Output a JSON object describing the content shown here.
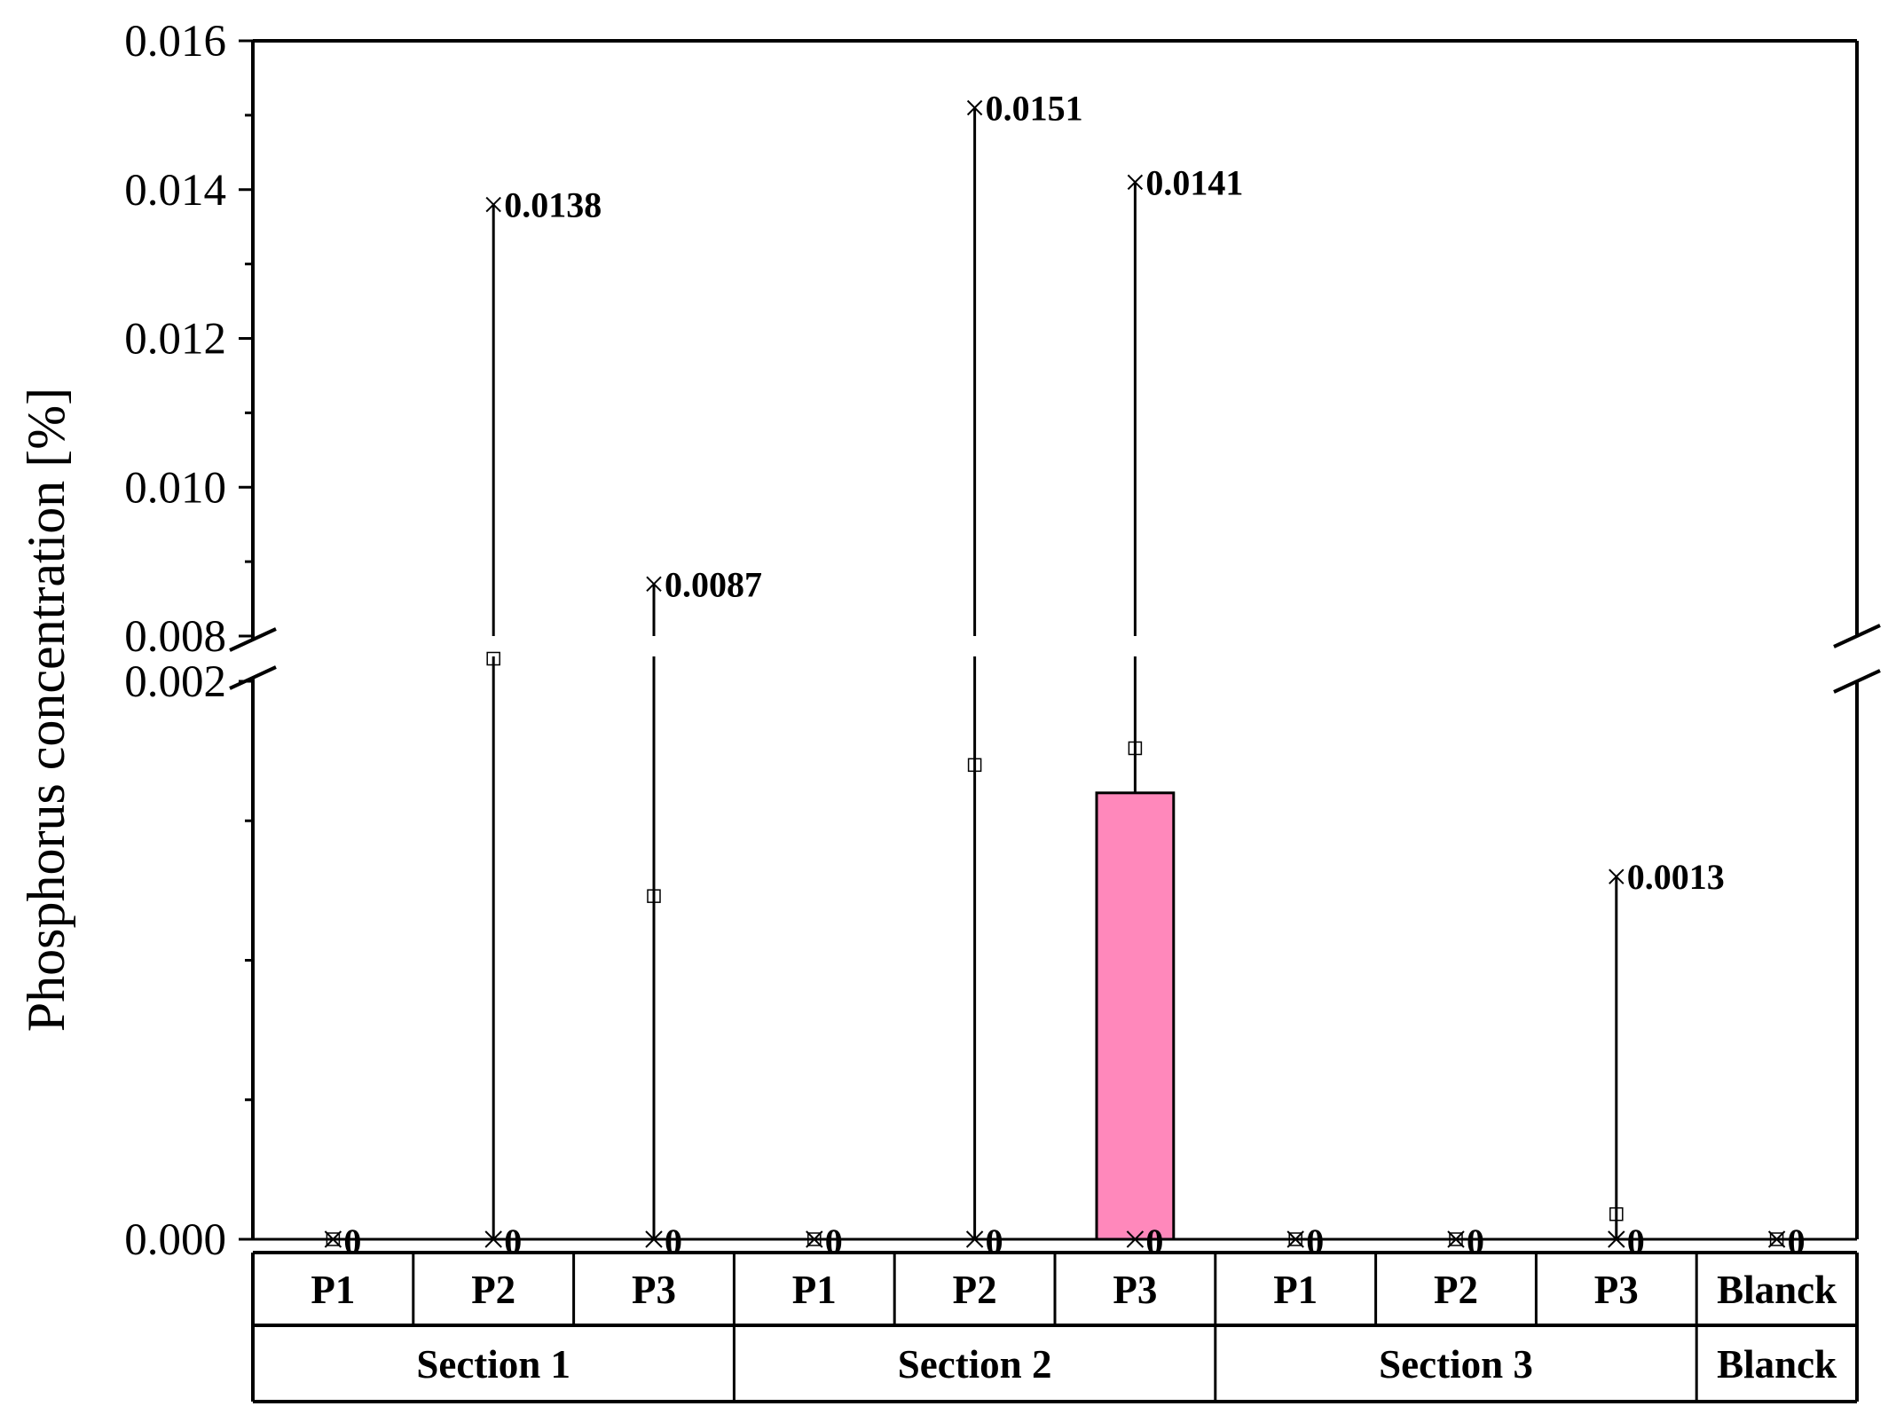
{
  "chart_data": {
    "type": "box",
    "ylabel": "Phosphorus concentration [%]",
    "y_axis": {
      "break": [
        0.002,
        0.008
      ],
      "lower_range": [
        0,
        0.002
      ],
      "upper_range": [
        0.008,
        0.016
      ],
      "tick_labels": [
        "0.000",
        "0.002",
        "0.008",
        "0.010",
        "0.012",
        "0.014",
        "0.016"
      ],
      "tick_values": [
        0,
        0.002,
        0.008,
        0.01,
        0.012,
        0.014,
        0.016
      ],
      "minor_tick_values": [
        0.0005,
        0.001,
        0.0015,
        0.009,
        0.011,
        0.013,
        0.015
      ]
    },
    "group_levels": {
      "points": [
        "P1",
        "P2",
        "P3",
        "P1",
        "P2",
        "P3",
        "P1",
        "P2",
        "P3",
        "Blanck"
      ],
      "sections": [
        {
          "label": "Section 1",
          "span": 3
        },
        {
          "label": "Section 2",
          "span": 3
        },
        {
          "label": "Section 3",
          "span": 3
        },
        {
          "label": "Blanck",
          "span": 1
        }
      ]
    },
    "boxes": [
      {
        "min": 0,
        "q1": 0,
        "median": 0,
        "q3": 0,
        "max": 0,
        "mean": 0,
        "min_label": "0",
        "max_label": "",
        "color": "#ffffff"
      },
      {
        "min": 0,
        "q1": 0,
        "median": 0,
        "q3": 0,
        "max": 0.0138,
        "mean": 0.0023,
        "min_label": "0",
        "max_label": "0.0138",
        "color": "#ffffff"
      },
      {
        "min": 0,
        "q1": 0,
        "median": 0,
        "q3": 0,
        "max": 0.0087,
        "mean": 0.00123,
        "min_label": "0",
        "max_label": "0.0087",
        "color": "#ffffff"
      },
      {
        "min": 0,
        "q1": 0,
        "median": 0,
        "q3": 0,
        "max": 0,
        "mean": 0,
        "min_label": "0",
        "max_label": "",
        "color": "#ffffff"
      },
      {
        "min": 0,
        "q1": 0,
        "median": 0,
        "q3": 0,
        "max": 0.0151,
        "mean": 0.0017,
        "min_label": "0",
        "max_label": "0.0151",
        "color": "#ffffff"
      },
      {
        "min": 0,
        "q1": 0,
        "median": 0,
        "q3": 0.0016,
        "max": 0.0141,
        "mean": 0.00176,
        "min_label": "0",
        "max_label": "0.0141",
        "color": "#ff88bb"
      },
      {
        "min": 0,
        "q1": 0,
        "median": 0,
        "q3": 0,
        "max": 0,
        "mean": 0,
        "min_label": "0",
        "max_label": "",
        "color": "#ffffff"
      },
      {
        "min": 0,
        "q1": 0,
        "median": 0,
        "q3": 0,
        "max": 0,
        "mean": 0,
        "min_label": "0",
        "max_label": "",
        "color": "#ffffff"
      },
      {
        "min": 0,
        "q1": 0,
        "median": 0,
        "q3": 0,
        "max": 0.0013,
        "mean": 9e-05,
        "min_label": "0",
        "max_label": "0.0013",
        "color": "#ffffff"
      },
      {
        "min": 0,
        "q1": 0,
        "median": 0,
        "q3": 0,
        "max": 0,
        "mean": 0,
        "min_label": "0",
        "max_label": "",
        "color": "#ffffff"
      }
    ],
    "legend": "none",
    "grid": false
  }
}
